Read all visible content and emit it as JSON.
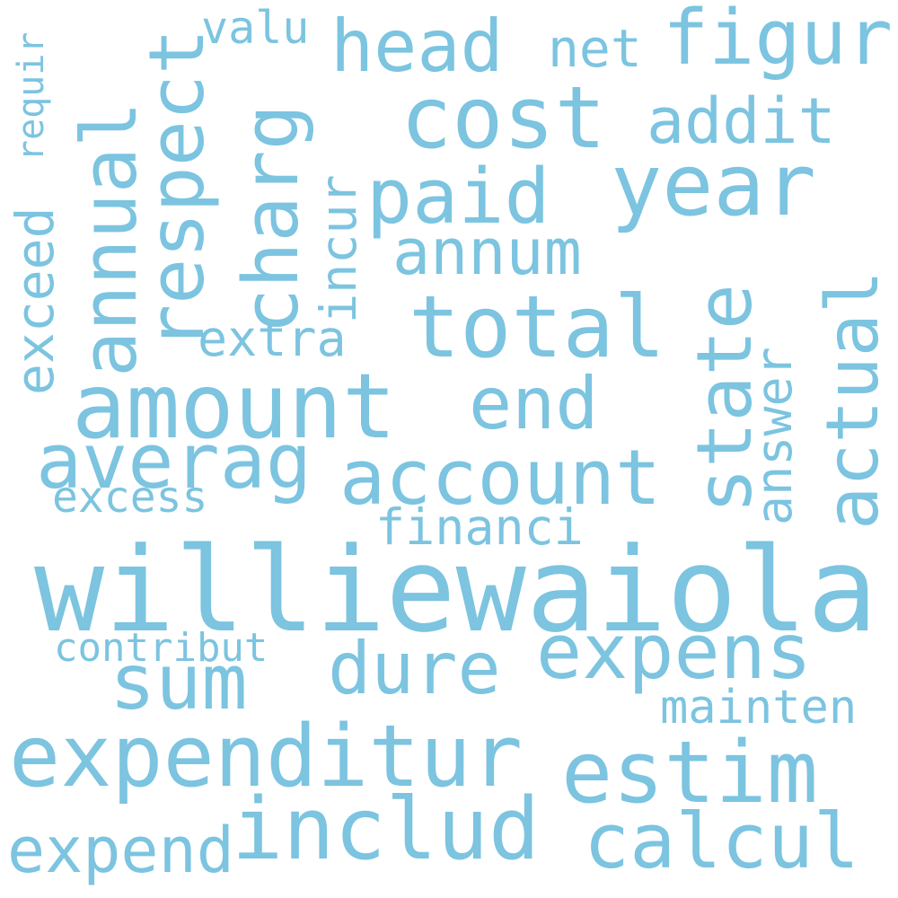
{
  "cloud": {
    "color": "#7cc4e0",
    "background": "#ffffff",
    "words": {
      "williewaiola": "williewaiola",
      "amount": "amount",
      "cost": "cost",
      "total": "total",
      "expenditur": "expenditur",
      "estim": "estim",
      "year": "year",
      "includ": "includ",
      "averag": "averag",
      "account": "account",
      "sum": "sum",
      "calcul": "calcul",
      "paid": "paid",
      "head": "head",
      "figur": "figur",
      "expens": "expens",
      "end": "end",
      "dure": "dure",
      "annum": "annum",
      "addit": "addit",
      "expend": "expend",
      "extra": "extra",
      "financi": "financi",
      "excess": "excess",
      "contribut": "contribut",
      "mainten": "mainten",
      "net": "net",
      "valu": "valu",
      "annual": "annual",
      "respect": "respect",
      "charg": "charg",
      "incur": "incur",
      "state": "state",
      "actual": "actual",
      "answer": "answer",
      "exceed": "exceed",
      "requir": "requir"
    }
  }
}
